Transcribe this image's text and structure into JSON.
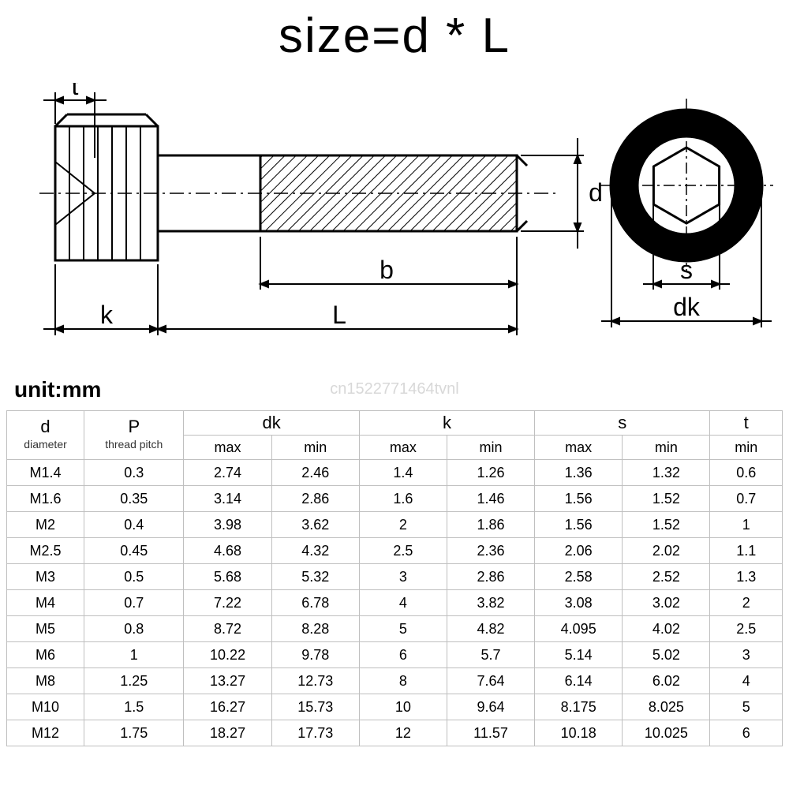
{
  "title": "size=d * L",
  "unit_label": "unit:mm",
  "watermark": "cn1522771464tvnl",
  "diagram": {
    "labels": {
      "t": "t",
      "k": "k",
      "L": "L",
      "b": "b",
      "d": "d",
      "s": "s",
      "dk": "dk"
    },
    "stroke": "#000000",
    "stroke_width": 2,
    "stroke_width_heavy": 3,
    "text_size": 32
  },
  "table": {
    "columns": [
      {
        "key": "d",
        "label": "d",
        "sub": "diameter"
      },
      {
        "key": "P",
        "label": "P",
        "sub": "thread pitch"
      },
      {
        "key": "dk",
        "label": "dk",
        "sub_cols": [
          "max",
          "min"
        ]
      },
      {
        "key": "k",
        "label": "k",
        "sub_cols": [
          "max",
          "min"
        ]
      },
      {
        "key": "s",
        "label": "s",
        "sub_cols": [
          "max",
          "min"
        ]
      },
      {
        "key": "t",
        "label": "t",
        "sub_cols": [
          "min"
        ]
      }
    ],
    "rows": [
      [
        "M1.4",
        "0.3",
        "2.74",
        "2.46",
        "1.4",
        "1.26",
        "1.36",
        "1.32",
        "0.6"
      ],
      [
        "M1.6",
        "0.35",
        "3.14",
        "2.86",
        "1.6",
        "1.46",
        "1.56",
        "1.52",
        "0.7"
      ],
      [
        "M2",
        "0.4",
        "3.98",
        "3.62",
        "2",
        "1.86",
        "1.56",
        "1.52",
        "1"
      ],
      [
        "M2.5",
        "0.45",
        "4.68",
        "4.32",
        "2.5",
        "2.36",
        "2.06",
        "2.02",
        "1.1"
      ],
      [
        "M3",
        "0.5",
        "5.68",
        "5.32",
        "3",
        "2.86",
        "2.58",
        "2.52",
        "1.3"
      ],
      [
        "M4",
        "0.7",
        "7.22",
        "6.78",
        "4",
        "3.82",
        "3.08",
        "3.02",
        "2"
      ],
      [
        "M5",
        "0.8",
        "8.72",
        "8.28",
        "5",
        "4.82",
        "4.095",
        "4.02",
        "2.5"
      ],
      [
        "M6",
        "1",
        "10.22",
        "9.78",
        "6",
        "5.7",
        "5.14",
        "5.02",
        "3"
      ],
      [
        "M8",
        "1.25",
        "13.27",
        "12.73",
        "8",
        "7.64",
        "6.14",
        "6.02",
        "4"
      ],
      [
        "M10",
        "1.5",
        "16.27",
        "15.73",
        "10",
        "9.64",
        "8.175",
        "8.025",
        "5"
      ],
      [
        "M12",
        "1.75",
        "18.27",
        "17.73",
        "12",
        "11.57",
        "10.18",
        "10.025",
        "6"
      ]
    ],
    "border_color": "#bfbfbf",
    "header_fontsize": 22,
    "sub_fontsize": 14,
    "cell_fontsize": 18
  }
}
